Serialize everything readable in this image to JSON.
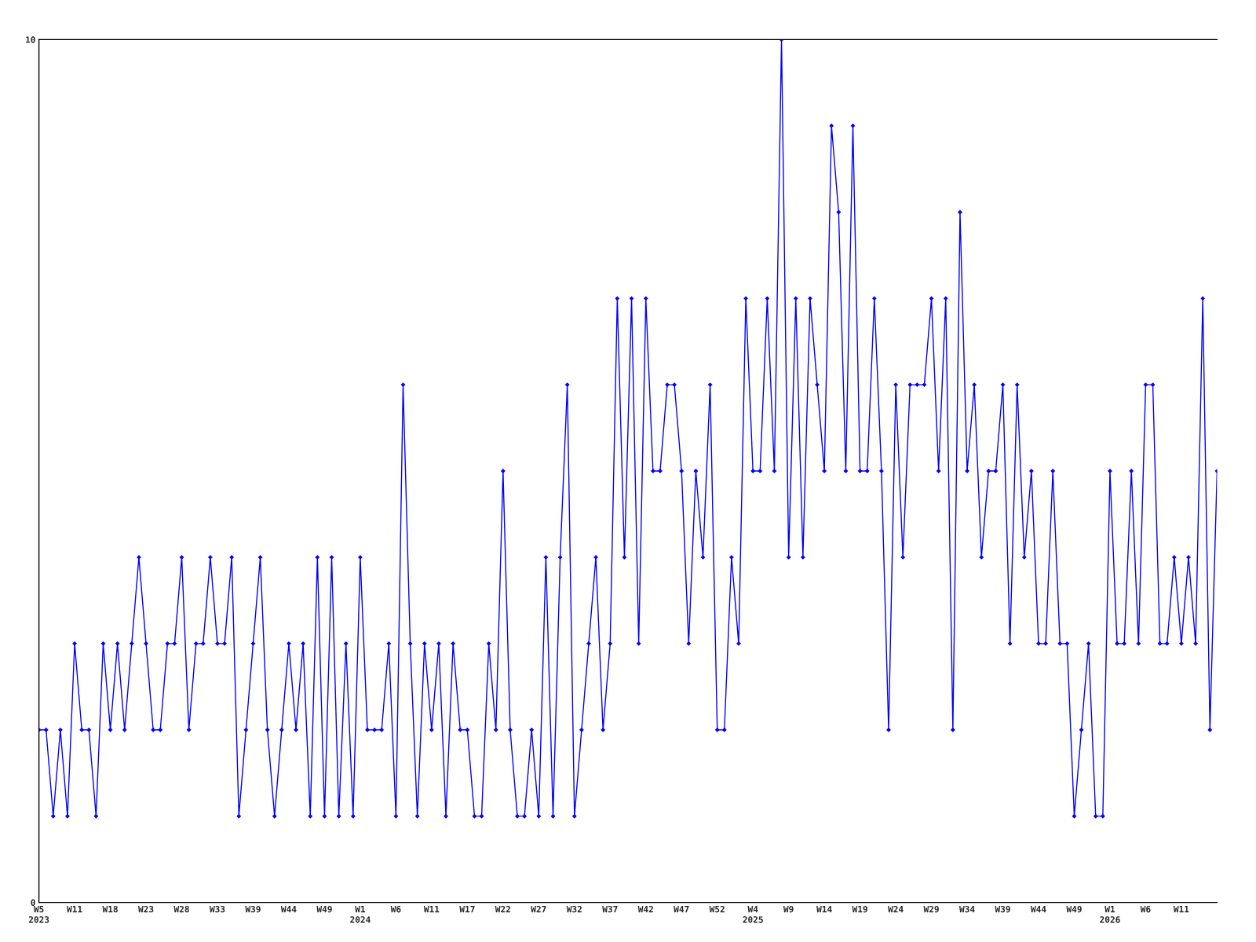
{
  "chart_data": {
    "type": "line",
    "categories": [
      "W5\n2023",
      null,
      null,
      null,
      null,
      "W11",
      null,
      null,
      null,
      null,
      "W18",
      null,
      null,
      null,
      null,
      "W23",
      null,
      null,
      null,
      null,
      "W28",
      null,
      null,
      null,
      null,
      "W33",
      null,
      null,
      null,
      null,
      "W39",
      null,
      null,
      null,
      null,
      "W44",
      null,
      null,
      null,
      null,
      "W49",
      null,
      null,
      null,
      null,
      "W1\n2024",
      null,
      null,
      null,
      null,
      "W6",
      null,
      null,
      null,
      null,
      "W11",
      null,
      null,
      null,
      null,
      "W17",
      null,
      null,
      null,
      null,
      "W22",
      null,
      null,
      null,
      null,
      "W27",
      null,
      null,
      null,
      null,
      "W32",
      null,
      null,
      null,
      null,
      "W37",
      null,
      null,
      null,
      null,
      "W42",
      null,
      null,
      null,
      null,
      "W47",
      null,
      null,
      null,
      null,
      "W52",
      null,
      null,
      null,
      null,
      "W4\n2025",
      null,
      null,
      null,
      null,
      "W9",
      null,
      null,
      null,
      null,
      "W14",
      null,
      null,
      null,
      null,
      "W19",
      null,
      null,
      null,
      null,
      "W24",
      null,
      null,
      null,
      null,
      "W29",
      null,
      null,
      null,
      null,
      "W34",
      null,
      null,
      null,
      null,
      "W39",
      null,
      null,
      null,
      null,
      "W44",
      null,
      null,
      null,
      null,
      "W49",
      null,
      null,
      null,
      null,
      "W1\n2026",
      null,
      null,
      null,
      null,
      "W6",
      null,
      null,
      null,
      null,
      "W11",
      null,
      null,
      null,
      null,
      null
    ],
    "series": [
      {
        "color": "#0000ff",
        "values": [
          2,
          2,
          1,
          2,
          1,
          3,
          2,
          2,
          1,
          3,
          2,
          3,
          2,
          3,
          4,
          3,
          2,
          2,
          3,
          3,
          4,
          2,
          3,
          3,
          4,
          3,
          3,
          4,
          1,
          2,
          3,
          4,
          2,
          1,
          2,
          3,
          2,
          3,
          1,
          4,
          1,
          4,
          1,
          3,
          1,
          4,
          2,
          2,
          2,
          3,
          1,
          6,
          3,
          1,
          3,
          2,
          3,
          1,
          3,
          2,
          2,
          1,
          1,
          3,
          2,
          5,
          2,
          1,
          1,
          2,
          1,
          4,
          1,
          4,
          6,
          1,
          2,
          3,
          4,
          2,
          3,
          7,
          4,
          7,
          3,
          7,
          5,
          5,
          6,
          6,
          5,
          3,
          5,
          4,
          6,
          2,
          2,
          4,
          3,
          7,
          5,
          5,
          7,
          5,
          10,
          4,
          7,
          4,
          7,
          6,
          5,
          9,
          8,
          5,
          9,
          5,
          5,
          7,
          5,
          2,
          6,
          4,
          6,
          6,
          6,
          7,
          5,
          7,
          2,
          8,
          5,
          6,
          4,
          5,
          5,
          6,
          3,
          6,
          4,
          5,
          3,
          3,
          5,
          3,
          3,
          1,
          2,
          3,
          1,
          1,
          5,
          3,
          3,
          5,
          3,
          6,
          6,
          3,
          3,
          4,
          3,
          4,
          3,
          7,
          2,
          5
        ]
      }
    ],
    "ylim": [
      0,
      10
    ],
    "yticks": [
      0,
      10
    ],
    "grid": false,
    "marker": "diamond",
    "line_style": "solid"
  }
}
